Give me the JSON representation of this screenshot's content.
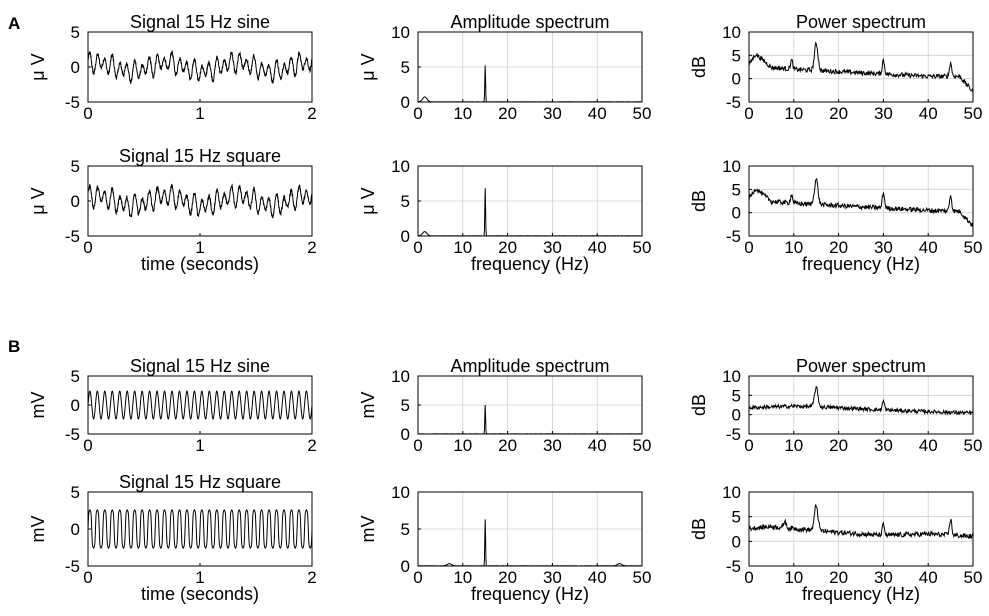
{
  "figure": {
    "panel_labels": [
      "A",
      "B"
    ]
  },
  "chart_data": [
    {
      "id": "A-time-sine",
      "type": "line",
      "title": "Signal 15 Hz sine",
      "xlabel": "",
      "ylabel": "μ V",
      "xlim": [
        0,
        2
      ],
      "ylim": [
        -5,
        5
      ],
      "xticks": [
        0,
        1,
        2
      ],
      "yticks": [
        -5,
        0,
        5
      ],
      "grid": false,
      "signal": {
        "freq_hz": 15,
        "amplitude": 1.1,
        "slow_amplitude": 0.8,
        "duration_s": 2,
        "kind": "noisy"
      }
    },
    {
      "id": "A-amp-sine",
      "type": "line",
      "title": "Amplitude spectrum",
      "xlabel": "",
      "ylabel": "μ V",
      "xlim": [
        0,
        50
      ],
      "ylim": [
        0,
        10
      ],
      "xticks": [
        0,
        10,
        20,
        30,
        40,
        50
      ],
      "yticks": [
        0,
        5,
        10
      ],
      "grid": true,
      "peaks": [
        {
          "x": 1.5,
          "y": 0.7
        },
        {
          "x": 15,
          "y": 5.2
        }
      ]
    },
    {
      "id": "A-pow-sine",
      "type": "line",
      "title": "Power spectrum",
      "xlabel": "",
      "ylabel": "dB",
      "xlim": [
        0,
        50
      ],
      "ylim": [
        -5,
        10
      ],
      "xticks": [
        0,
        10,
        20,
        30,
        40,
        50
      ],
      "yticks": [
        -5,
        0,
        5,
        10
      ],
      "grid": true,
      "baseline": [
        [
          0,
          3
        ],
        [
          1.5,
          5.3
        ],
        [
          5,
          2.4
        ],
        [
          10,
          2.0
        ],
        [
          20,
          1.5
        ],
        [
          30,
          1.0
        ],
        [
          40,
          0.5
        ],
        [
          47,
          0.5
        ],
        [
          50,
          -2.8
        ]
      ],
      "peaks": [
        {
          "x": 9.5,
          "y": 4.0
        },
        {
          "x": 15,
          "y": 7.5
        },
        {
          "x": 30,
          "y": 4.0
        },
        {
          "x": 45,
          "y": 3.4
        }
      ]
    },
    {
      "id": "A-time-square",
      "type": "line",
      "title": "Signal 15 Hz square",
      "xlabel": "time (seconds)",
      "ylabel": "μ V",
      "xlim": [
        0,
        2
      ],
      "ylim": [
        -5,
        5
      ],
      "xticks": [
        0,
        1,
        2
      ],
      "yticks": [
        -5,
        0,
        5
      ],
      "grid": false,
      "signal": {
        "freq_hz": 15,
        "amplitude": 1.2,
        "slow_amplitude": 0.9,
        "duration_s": 2,
        "kind": "noisy"
      }
    },
    {
      "id": "A-amp-square",
      "type": "line",
      "title": "",
      "xlabel": "frequency (Hz)",
      "ylabel": "μ V",
      "xlim": [
        0,
        50
      ],
      "ylim": [
        0,
        10
      ],
      "xticks": [
        0,
        10,
        20,
        30,
        40,
        50
      ],
      "yticks": [
        0,
        5,
        10
      ],
      "grid": true,
      "peaks": [
        {
          "x": 1.5,
          "y": 0.6
        },
        {
          "x": 15,
          "y": 6.8
        }
      ]
    },
    {
      "id": "A-pow-square",
      "type": "line",
      "title": "",
      "xlabel": "frequency (Hz)",
      "ylabel": "dB",
      "xlim": [
        0,
        50
      ],
      "ylim": [
        -5,
        10
      ],
      "xticks": [
        0,
        10,
        20,
        30,
        40,
        50
      ],
      "yticks": [
        -5,
        0,
        5,
        10
      ],
      "grid": true,
      "baseline": [
        [
          0,
          3
        ],
        [
          1.5,
          5.2
        ],
        [
          5,
          2.4
        ],
        [
          10,
          2.0
        ],
        [
          20,
          1.5
        ],
        [
          30,
          1.0
        ],
        [
          40,
          0.5
        ],
        [
          47,
          0.3
        ],
        [
          50,
          -2.8
        ]
      ],
      "peaks": [
        {
          "x": 9.5,
          "y": 3.8
        },
        {
          "x": 15,
          "y": 7.2
        },
        {
          "x": 30,
          "y": 4.3
        },
        {
          "x": 45,
          "y": 3.8
        }
      ]
    },
    {
      "id": "B-time-sine",
      "type": "line",
      "title": "Signal 15 Hz sine",
      "xlabel": "",
      "ylabel": "mV",
      "xlim": [
        0,
        2
      ],
      "ylim": [
        -5,
        5
      ],
      "xticks": [
        0,
        1,
        2
      ],
      "yticks": [
        -5,
        0,
        5
      ],
      "grid": false,
      "signal": {
        "freq_hz": 15,
        "amplitude": 2.4,
        "slow_amplitude": 0.0,
        "duration_s": 2,
        "kind": "clean"
      }
    },
    {
      "id": "B-amp-sine",
      "type": "line",
      "title": "Amplitude spectrum",
      "xlabel": "",
      "ylabel": "mV",
      "xlim": [
        0,
        50
      ],
      "ylim": [
        0,
        10
      ],
      "xticks": [
        0,
        10,
        20,
        30,
        40,
        50
      ],
      "yticks": [
        0,
        5,
        10
      ],
      "grid": true,
      "peaks": [
        {
          "x": 15,
          "y": 5.0
        }
      ]
    },
    {
      "id": "B-pow-sine",
      "type": "line",
      "title": "Power spectrum",
      "xlabel": "",
      "ylabel": "dB",
      "xlim": [
        0,
        50
      ],
      "ylim": [
        -5,
        10
      ],
      "xticks": [
        0,
        10,
        20,
        30,
        40,
        50
      ],
      "yticks": [
        -5,
        0,
        5,
        10
      ],
      "grid": true,
      "baseline": [
        [
          0,
          1.8
        ],
        [
          10,
          2.2
        ],
        [
          20,
          1.8
        ],
        [
          30,
          1.2
        ],
        [
          40,
          0.8
        ],
        [
          50,
          0.4
        ]
      ],
      "peaks": [
        {
          "x": 15,
          "y": 7.0
        },
        {
          "x": 30,
          "y": 3.5
        }
      ]
    },
    {
      "id": "B-time-square",
      "type": "line",
      "title": "Signal 15 Hz square",
      "xlabel": "time (seconds)",
      "ylabel": "mV",
      "xlim": [
        0,
        2
      ],
      "ylim": [
        -5,
        5
      ],
      "xticks": [
        0,
        1,
        2
      ],
      "yticks": [
        -5,
        0,
        5
      ],
      "grid": false,
      "signal": {
        "freq_hz": 15,
        "amplitude": 3.2,
        "slow_amplitude": 0.0,
        "duration_s": 2,
        "kind": "square-ish"
      }
    },
    {
      "id": "B-amp-square",
      "type": "line",
      "title": "",
      "xlabel": "frequency (Hz)",
      "ylabel": "mV",
      "xlim": [
        0,
        50
      ],
      "ylim": [
        0,
        10
      ],
      "xticks": [
        0,
        10,
        20,
        30,
        40,
        50
      ],
      "yticks": [
        0,
        5,
        10
      ],
      "grid": true,
      "peaks": [
        {
          "x": 7,
          "y": 0.3
        },
        {
          "x": 15,
          "y": 6.3
        },
        {
          "x": 45,
          "y": 0.3
        }
      ]
    },
    {
      "id": "B-pow-square",
      "type": "line",
      "title": "",
      "xlabel": "frequency (Hz)",
      "ylabel": "dB",
      "xlim": [
        0,
        50
      ],
      "ylim": [
        -5,
        10
      ],
      "xticks": [
        0,
        10,
        20,
        30,
        40,
        50
      ],
      "yticks": [
        -5,
        0,
        5,
        10
      ],
      "grid": true,
      "baseline": [
        [
          0,
          2.6
        ],
        [
          5,
          3.0
        ],
        [
          10,
          2.6
        ],
        [
          20,
          1.8
        ],
        [
          30,
          1.2
        ],
        [
          40,
          1.5
        ],
        [
          50,
          1.0
        ]
      ],
      "peaks": [
        {
          "x": 8,
          "y": 4.2
        },
        {
          "x": 15,
          "y": 7.3
        },
        {
          "x": 30,
          "y": 3.4
        },
        {
          "x": 45,
          "y": 4.5
        }
      ]
    }
  ]
}
